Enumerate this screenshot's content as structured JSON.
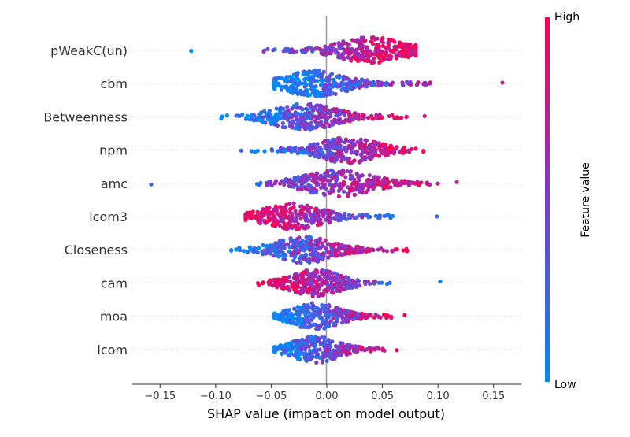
{
  "chart_data": {
    "type": "scatter",
    "subtype": "shap-beeswarm",
    "xlabel": "SHAP value (impact on model output)",
    "xlim": [
      -0.175,
      0.175
    ],
    "xticks": [
      -0.15,
      -0.1,
      -0.05,
      0.0,
      0.05,
      0.1,
      0.15
    ],
    "xtick_labels": [
      "−0.15",
      "−0.10",
      "−0.05",
      "0.00",
      "0.05",
      "0.10",
      "0.15"
    ],
    "features": [
      {
        "name": "pWeakC(un)",
        "min": -0.122,
        "max": 0.08,
        "core": [
          -0.06,
          0.075
        ],
        "peak": 0.04,
        "low_side": "negative"
      },
      {
        "name": "cbm",
        "min": -0.047,
        "max": 0.158,
        "core": [
          -0.035,
          0.09
        ],
        "peak": -0.01,
        "low_side": "negative"
      },
      {
        "name": "Betweenness",
        "min": -0.095,
        "max": 0.088,
        "core": [
          -0.06,
          0.07
        ],
        "peak": -0.02,
        "low_side": "negative"
      },
      {
        "name": "npm",
        "min": -0.077,
        "max": 0.087,
        "core": [
          -0.065,
          0.055
        ],
        "peak": 0.02,
        "low_side": "negative"
      },
      {
        "name": "amc",
        "min": -0.158,
        "max": 0.117,
        "core": [
          -0.05,
          0.09
        ],
        "peak": 0.01,
        "low_side": "negative"
      },
      {
        "name": "lcom3",
        "min": -0.073,
        "max": 0.099,
        "core": [
          -0.06,
          0.06
        ],
        "peak": -0.03,
        "low_side": "positive"
      },
      {
        "name": "Closeness",
        "min": -0.086,
        "max": 0.072,
        "core": [
          -0.05,
          0.07
        ],
        "peak": -0.02,
        "low_side": "negative"
      },
      {
        "name": "cam",
        "min": -0.062,
        "max": 0.102,
        "core": [
          -0.05,
          0.055
        ],
        "peak": -0.01,
        "low_side": "positive"
      },
      {
        "name": "moa",
        "min": -0.047,
        "max": 0.07,
        "core": [
          -0.04,
          0.06
        ],
        "peak": -0.01,
        "low_side": "negative"
      },
      {
        "name": "lcom",
        "min": -0.047,
        "max": 0.063,
        "core": [
          -0.045,
          0.05
        ],
        "peak": -0.01,
        "low_side": "negative"
      }
    ],
    "colorbar": {
      "title": "Feature value",
      "high_label": "High",
      "low_label": "Low",
      "low_color": "#008bfb",
      "mid_color": "#7f3ad0",
      "high_color": "#ff0052"
    },
    "zero_line_color": "#999999",
    "grid": false
  }
}
